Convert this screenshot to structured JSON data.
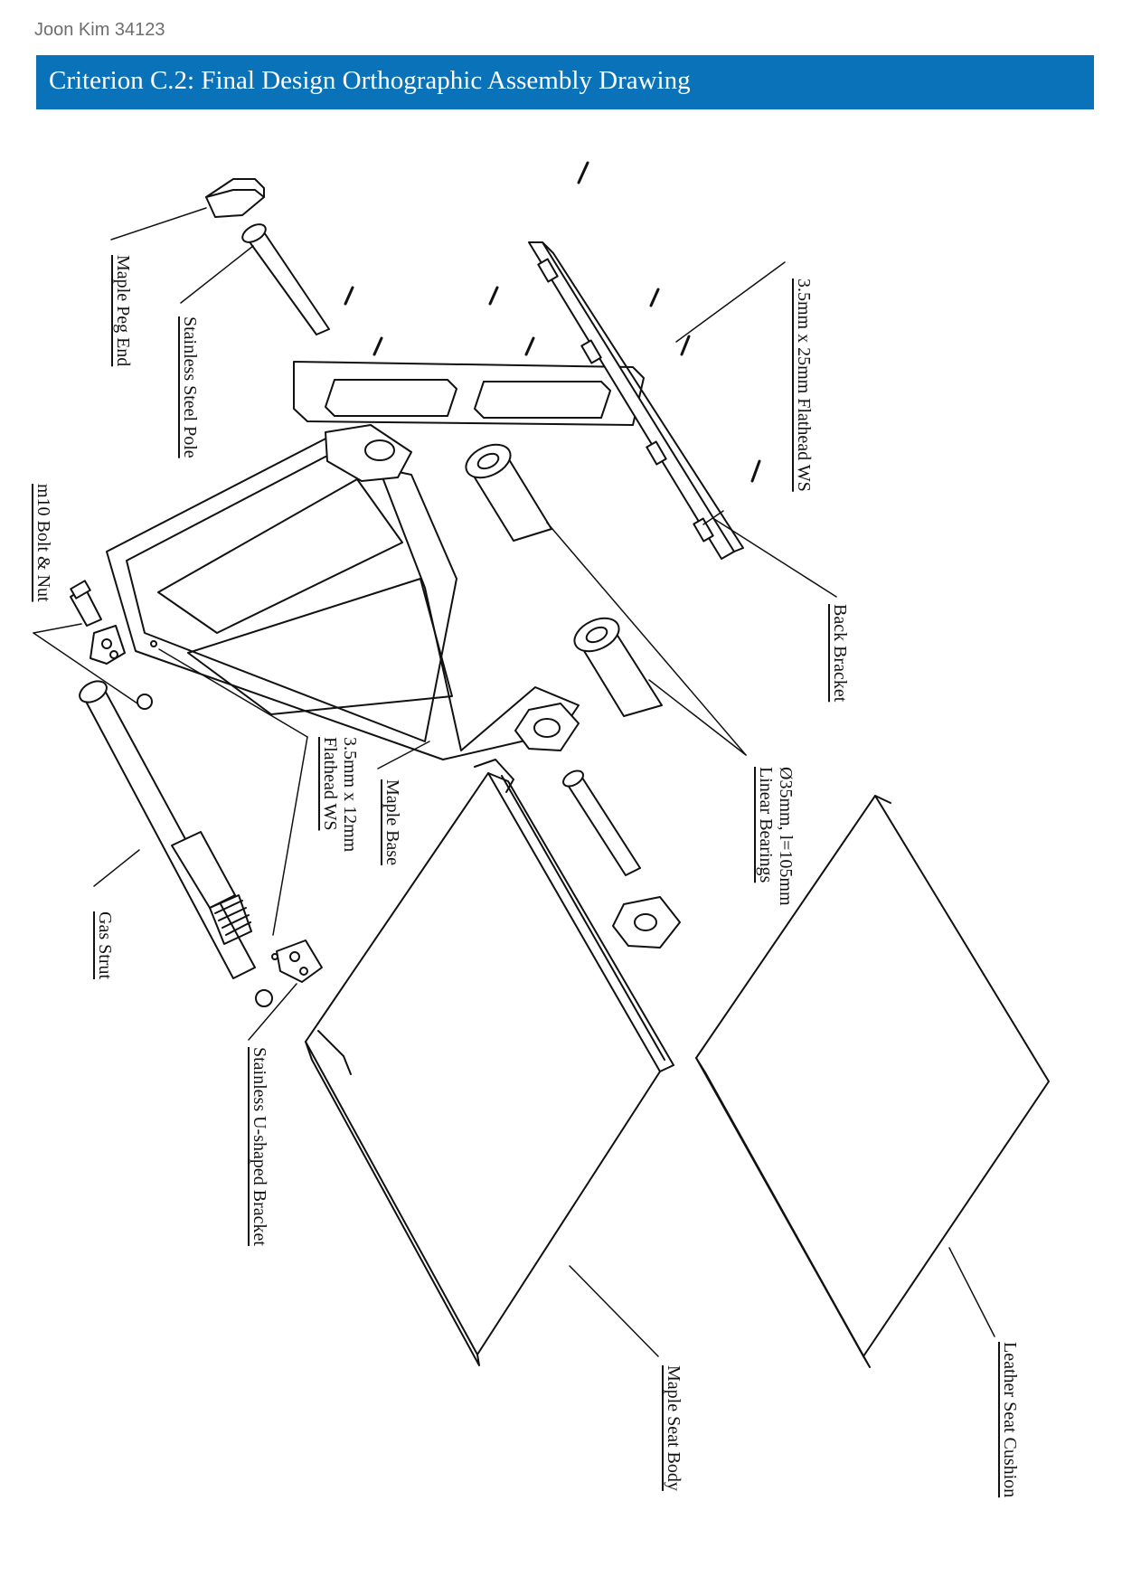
{
  "header": {
    "author": "Joon Kim 34123",
    "title": "Criterion C.2: Final Design Orthographic Assembly Drawing"
  },
  "colors": {
    "banner": "#0a72b8"
  },
  "labels": {
    "maple_peg_end": "Maple Peg End",
    "stainless_steel_pole": "Stainless Steel Pole",
    "bolt_nut": "m10 Bolt & Nut",
    "screw_long": "3.5mm x 25mm Flathead WS",
    "back_bracket": "Back Bracket",
    "bearing_line1": "Ø35mm, l=105mm",
    "bearing_line2": "Linear Bearings",
    "maple_base": "Maple Base",
    "screw_short_line1": "3.5mm x 12mm",
    "screw_short_line2": "Flathead WS",
    "gas_strut": "Gas Strut",
    "u_bracket": "Stainless U-shaped Bracket",
    "maple_seat_body": "Maple Seat Body",
    "leather_seat_cushion": "Leather Seat Cushion"
  }
}
